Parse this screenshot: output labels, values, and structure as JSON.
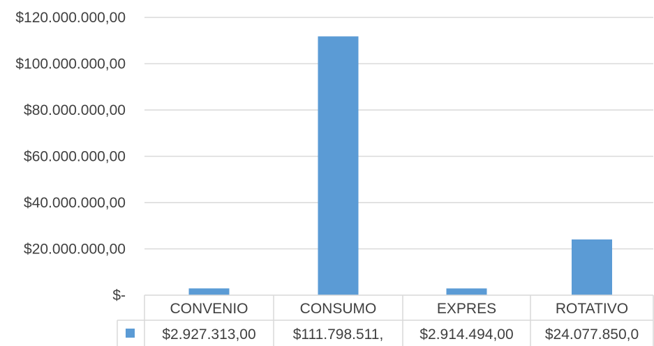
{
  "chart_data": {
    "type": "bar",
    "categories": [
      "CONVENIO",
      "CONSUMO",
      "EXPRES",
      "ROTATIVO"
    ],
    "values": [
      2927313,
      111798511,
      2914494,
      24077850
    ],
    "table_values": [
      "$2.927.313,00",
      "$111.798.511,",
      "$2.914.494,00",
      "$24.077.850,0"
    ],
    "y_ticks": [
      {
        "value": 0,
        "label": "$-"
      },
      {
        "value": 20000000,
        "label": "$20.000.000,00"
      },
      {
        "value": 40000000,
        "label": "$40.000.000,00"
      },
      {
        "value": 60000000,
        "label": "$60.000.000,00"
      },
      {
        "value": 80000000,
        "label": "$80.000.000,00"
      },
      {
        "value": 100000000,
        "label": "$100.000.000,00"
      },
      {
        "value": 120000000,
        "label": "$120.000.000,00"
      }
    ],
    "ylim": [
      0,
      120000000
    ],
    "grid": true,
    "data_table": true,
    "series_color": "#5B9BD5",
    "grid_color": "#D9D9D9"
  }
}
